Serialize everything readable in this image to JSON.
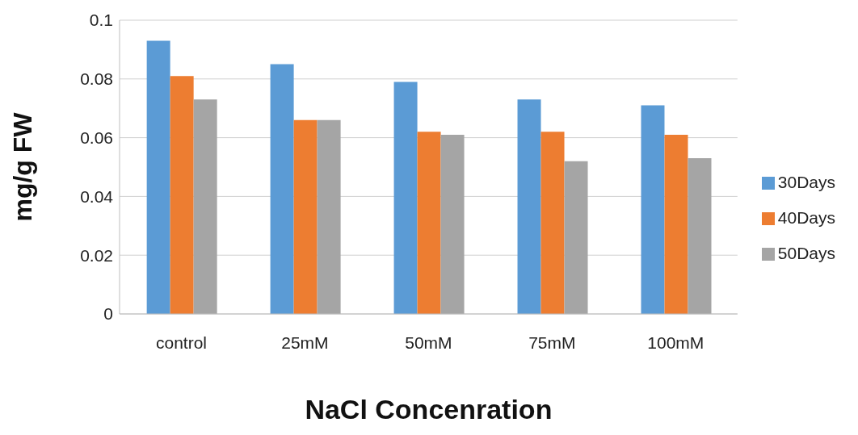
{
  "chart_data": {
    "type": "bar",
    "xlabel": "NaCl Concenration",
    "ylabel": "mg/g FW",
    "categories": [
      "control",
      "25mM",
      "50mM",
      "75mM",
      "100mM"
    ],
    "series": [
      {
        "name": "30Days",
        "color": "#5b9bd5",
        "values": [
          0.093,
          0.085,
          0.079,
          0.073,
          0.071
        ]
      },
      {
        "name": "40Days",
        "color": "#ed7d31",
        "values": [
          0.081,
          0.066,
          0.062,
          0.062,
          0.061
        ]
      },
      {
        "name": "50Days",
        "color": "#a5a5a5",
        "values": [
          0.073,
          0.066,
          0.061,
          0.052,
          0.053
        ]
      }
    ],
    "ylim": [
      0,
      0.1
    ],
    "yticks": [
      0,
      0.02,
      0.04,
      0.06,
      0.08,
      0.1
    ],
    "grid": "y",
    "legend": "right"
  }
}
